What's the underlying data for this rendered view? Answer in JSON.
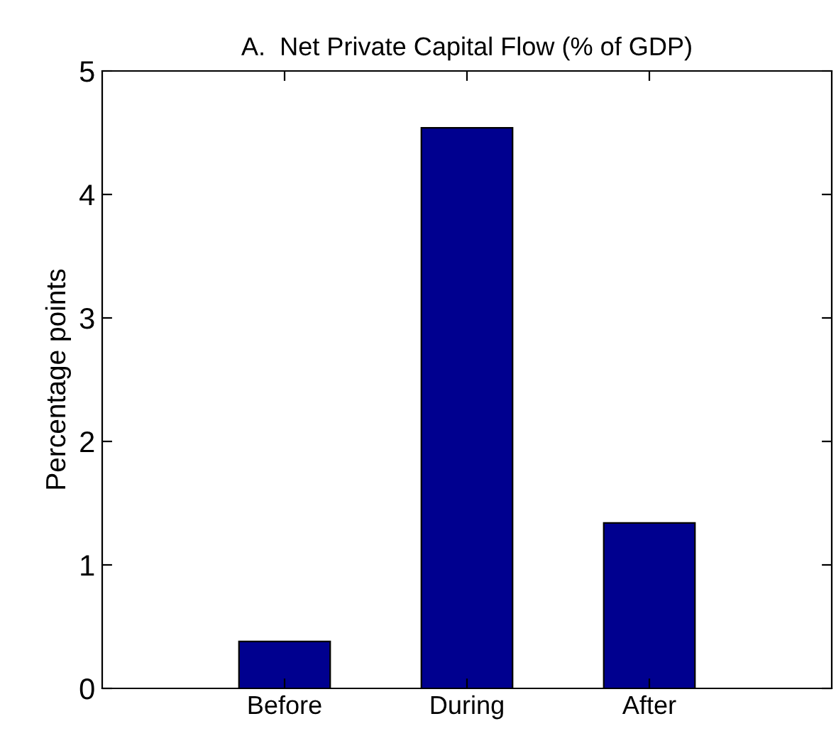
{
  "chart_data": {
    "type": "bar",
    "title": "A.  Net Private Capital Flow (% of GDP)",
    "ylabel": "Percentage points",
    "categories": [
      "Before",
      "During",
      "After"
    ],
    "values": [
      0.38,
      4.54,
      1.34
    ],
    "color": "#00008f",
    "ylim": [
      0,
      5
    ],
    "yticks": [
      0,
      1,
      2,
      3,
      4,
      5
    ],
    "grid": false,
    "legend": false
  }
}
